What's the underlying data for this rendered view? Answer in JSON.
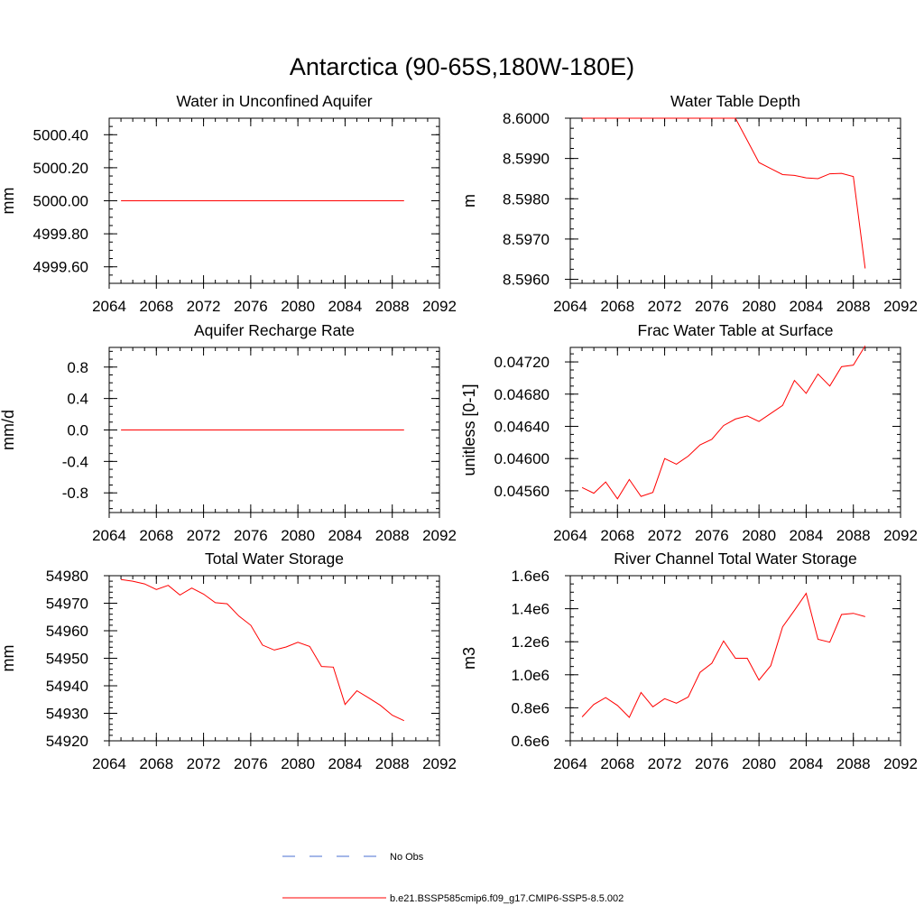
{
  "figure": {
    "title": "Antarctica (90-65S,180W-180E)"
  },
  "legend": [
    {
      "label": "No Obs",
      "color": "#4a6fd1",
      "style": "dashed"
    },
    {
      "label": "b.e21.BSSP585cmip6.f09_g17.CMIP6-SSP5-8.5.002",
      "color": "#ff0000",
      "style": "solid"
    }
  ],
  "chart_data": [
    {
      "type": "line",
      "title": "Water in Unconfined Aquifer",
      "ylabel": "mm",
      "xlim": [
        2064,
        2092
      ],
      "ylim": [
        4999.5,
        5000.5
      ],
      "xticks": [
        "2064",
        "2068",
        "2072",
        "2076",
        "2080",
        "2084",
        "2088",
        "2092"
      ],
      "yticks": [
        "4999.60",
        "4999.80",
        "5000.00",
        "5000.20",
        "5000.40"
      ],
      "ytick_values": [
        4999.6,
        4999.8,
        5000.0,
        5000.2,
        5000.4
      ],
      "yminor_step": 0.05,
      "series": [
        {
          "color": "#ff0000",
          "x": [
            2065,
            2066,
            2067,
            2068,
            2069,
            2070,
            2071,
            2072,
            2073,
            2074,
            2075,
            2076,
            2077,
            2078,
            2079,
            2080,
            2081,
            2082,
            2083,
            2084,
            2085,
            2086,
            2087,
            2088,
            2089
          ],
          "y": [
            5000,
            5000,
            5000,
            5000,
            5000,
            5000,
            5000,
            5000,
            5000,
            5000,
            5000,
            5000,
            5000,
            5000,
            5000,
            5000,
            5000,
            5000,
            5000,
            5000,
            5000,
            5000,
            5000,
            5000,
            5000
          ]
        }
      ]
    },
    {
      "type": "line",
      "title": "Water Table Depth",
      "ylabel": "m",
      "xlim": [
        2064,
        2092
      ],
      "ylim": [
        8.5959,
        8.6
      ],
      "xticks": [
        "2064",
        "2068",
        "2072",
        "2076",
        "2080",
        "2084",
        "2088",
        "2092"
      ],
      "yticks": [
        "8.5960",
        "8.5970",
        "8.5980",
        "8.5990",
        "8.6000"
      ],
      "ytick_values": [
        8.596,
        8.597,
        8.598,
        8.599,
        8.6
      ],
      "yminor_step": 0.00025,
      "series": [
        {
          "color": "#ff0000",
          "x": [
            2065,
            2066,
            2067,
            2068,
            2069,
            2070,
            2071,
            2072,
            2073,
            2074,
            2075,
            2076,
            2077,
            2078,
            2079,
            2080,
            2081,
            2082,
            2083,
            2084,
            2085,
            2086,
            2087,
            2088,
            2089
          ],
          "y": [
            8.6,
            8.6,
            8.6,
            8.6,
            8.6,
            8.6,
            8.6,
            8.6,
            8.6,
            8.6,
            8.6,
            8.6,
            8.6,
            8.6,
            8.59945,
            8.5989,
            8.59875,
            8.5986,
            8.59858,
            8.59852,
            8.5985,
            8.59862,
            8.59863,
            8.59855,
            8.59627
          ]
        }
      ]
    },
    {
      "type": "line",
      "title": "Aquifer Recharge Rate",
      "ylabel": "mm/d",
      "xlim": [
        2064,
        2092
      ],
      "ylim": [
        -1.05,
        1.05
      ],
      "xticks": [
        "2064",
        "2068",
        "2072",
        "2076",
        "2080",
        "2084",
        "2088",
        "2092"
      ],
      "yticks": [
        "-0.8",
        "-0.4",
        "0.0",
        "0.4",
        "0.8"
      ],
      "ytick_values": [
        -0.8,
        -0.4,
        0.0,
        0.4,
        0.8
      ],
      "yminor_step": 0.1,
      "series": [
        {
          "color": "#ff0000",
          "x": [
            2065,
            2066,
            2067,
            2068,
            2069,
            2070,
            2071,
            2072,
            2073,
            2074,
            2075,
            2076,
            2077,
            2078,
            2079,
            2080,
            2081,
            2082,
            2083,
            2084,
            2085,
            2086,
            2087,
            2088,
            2089
          ],
          "y": [
            0,
            0,
            0,
            0,
            0,
            0,
            0,
            0,
            0,
            0,
            0,
            0,
            0,
            0,
            0,
            0,
            0,
            0,
            0,
            0,
            0,
            0,
            0,
            0,
            0
          ]
        }
      ]
    },
    {
      "type": "line",
      "title": "Frac Water Table at Surface",
      "ylabel": "unitless [0-1]",
      "xlim": [
        2064,
        2092
      ],
      "ylim": [
        0.04533,
        0.04738
      ],
      "xticks": [
        "2064",
        "2068",
        "2072",
        "2076",
        "2080",
        "2084",
        "2088",
        "2092"
      ],
      "yticks": [
        "0.04560",
        "0.04600",
        "0.04640",
        "0.04680",
        "0.04720"
      ],
      "ytick_values": [
        0.0456,
        0.046,
        0.0464,
        0.0468,
        0.0472
      ],
      "yminor_step": 0.0001,
      "series": [
        {
          "color": "#ff0000",
          "x": [
            2065,
            2066,
            2067,
            2068,
            2069,
            2070,
            2071,
            2072,
            2073,
            2074,
            2075,
            2076,
            2077,
            2078,
            2079,
            2080,
            2081,
            2082,
            2083,
            2084,
            2085,
            2086,
            2087,
            2088,
            2089
          ],
          "y": [
            0.04564,
            0.04557,
            0.04571,
            0.0455,
            0.04574,
            0.04553,
            0.04558,
            0.046,
            0.04593,
            0.04603,
            0.04617,
            0.04624,
            0.04641,
            0.04649,
            0.04653,
            0.04646,
            0.04656,
            0.04666,
            0.04697,
            0.04681,
            0.04705,
            0.0469,
            0.04714,
            0.04716,
            0.0474
          ]
        }
      ]
    },
    {
      "type": "line",
      "title": "Total Water Storage",
      "ylabel": "mm",
      "xlim": [
        2064,
        2092
      ],
      "ylim": [
        54920,
        54980
      ],
      "xticks": [
        "2064",
        "2068",
        "2072",
        "2076",
        "2080",
        "2084",
        "2088",
        "2092"
      ],
      "yticks": [
        "54920",
        "54930",
        "54940",
        "54950",
        "54960",
        "54970",
        "54980"
      ],
      "ytick_values": [
        54920,
        54930,
        54940,
        54950,
        54960,
        54970,
        54980
      ],
      "yminor_step": 2,
      "series": [
        {
          "color": "#ff0000",
          "x": [
            2065,
            2066,
            2067,
            2068,
            2069,
            2070,
            2071,
            2072,
            2073,
            2074,
            2075,
            2076,
            2077,
            2078,
            2079,
            2080,
            2081,
            2082,
            2083,
            2084,
            2085,
            2086,
            2087,
            2088,
            2089
          ],
          "y": [
            54978.6,
            54978.0,
            54977.0,
            54975.0,
            54976.5,
            54973.0,
            54975.5,
            54973.3,
            54970.2,
            54969.8,
            54965.3,
            54962.0,
            54954.8,
            54953.0,
            54954.1,
            54955.8,
            54954.3,
            54947.0,
            54946.8,
            54933.2,
            54938.2,
            54935.6,
            54932.9,
            54929.3,
            54927.3
          ]
        }
      ]
    },
    {
      "type": "line",
      "title": "River Channel Total Water Storage",
      "ylabel": "m3",
      "xlim": [
        2064,
        2092
      ],
      "ylim": [
        600000,
        1600000
      ],
      "xticks": [
        "2064",
        "2068",
        "2072",
        "2076",
        "2080",
        "2084",
        "2088",
        "2092"
      ],
      "yticks": [
        "0.6e6",
        "0.8e6",
        "1.0e6",
        "1.2e6",
        "1.4e6",
        "1.6e6"
      ],
      "ytick_values": [
        600000,
        800000,
        1000000,
        1200000,
        1400000,
        1600000
      ],
      "yminor_step": 50000,
      "series": [
        {
          "color": "#ff0000",
          "x": [
            2065,
            2066,
            2067,
            2068,
            2069,
            2070,
            2071,
            2072,
            2073,
            2074,
            2075,
            2076,
            2077,
            2078,
            2079,
            2080,
            2081,
            2082,
            2083,
            2084,
            2085,
            2086,
            2087,
            2088,
            2089
          ],
          "y": [
            745000,
            820000,
            862000,
            814000,
            742000,
            893000,
            806000,
            855000,
            828000,
            865000,
            1015000,
            1070000,
            1205000,
            1100000,
            1100000,
            968000,
            1055000,
            1290000,
            1390000,
            1493000,
            1215000,
            1197000,
            1365000,
            1372000,
            1352000
          ]
        }
      ]
    }
  ]
}
